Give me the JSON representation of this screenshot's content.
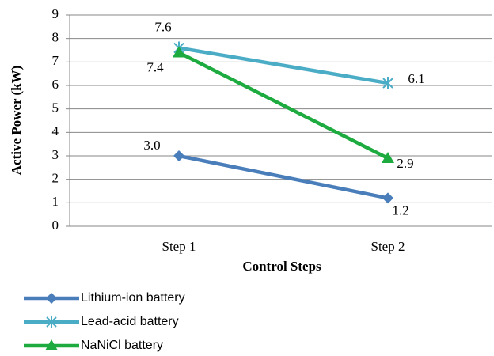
{
  "chart_data": {
    "type": "line",
    "categories": [
      "Step 1",
      "Step 2"
    ],
    "series": [
      {
        "name": "Lithium-ion battery",
        "color": "#4a7ebb",
        "marker": "diamond",
        "values": [
          3.0,
          1.2
        ],
        "value_labels": [
          "3.0",
          "1.2"
        ]
      },
      {
        "name": "Lead-acid battery",
        "color": "#4bacc6",
        "marker": "asterisk",
        "values": [
          7.6,
          6.1
        ],
        "value_labels": [
          "7.6",
          "6.1"
        ]
      },
      {
        "name": "NaNiCl battery",
        "color": "#1dab3f",
        "marker": "triangle",
        "values": [
          7.4,
          2.9
        ],
        "value_labels": [
          "7.4",
          "2.9"
        ]
      }
    ],
    "xlabel": "Control Steps",
    "ylabel": "Active Power (kW)",
    "ylim": [
      0,
      9
    ],
    "yticks": [
      0,
      1,
      2,
      3,
      4,
      5,
      6,
      7,
      8,
      9
    ],
    "grid": true,
    "legend": "bottom"
  }
}
